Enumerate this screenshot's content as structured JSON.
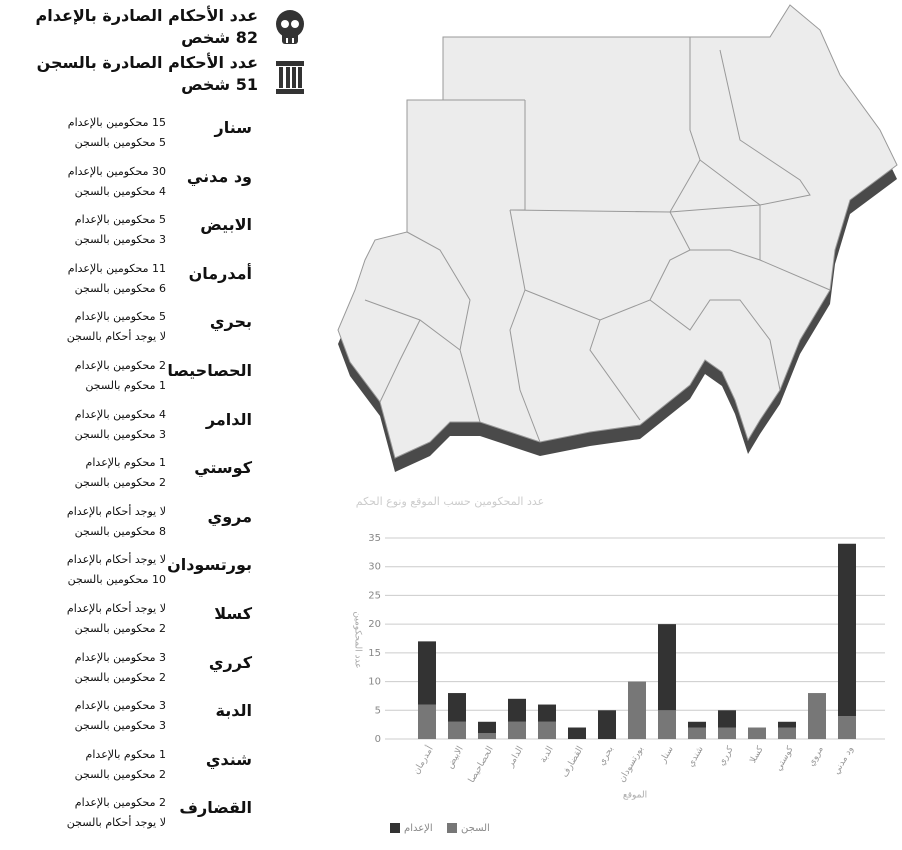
{
  "summary": [
    {
      "label": "عدد الأحكام الصادرة بالإعدام",
      "count": "82 شخص"
    },
    {
      "label": "عدد الأحكام الصادرة بالسجن",
      "count": "51 شخص"
    }
  ],
  "cities": [
    {
      "name": "سنار",
      "lines": [
        "15 محكومين بالإعدام",
        "5 محكومين بالسجن"
      ]
    },
    {
      "name": "ود مدني",
      "lines": [
        "30 محكومين بالإعدام",
        "4 محكومين بالسجن"
      ]
    },
    {
      "name": "الابيض",
      "lines": [
        "5 محكومين بالإعدام",
        "3 محكومين بالسجن"
      ]
    },
    {
      "name": "أمدرمان",
      "lines": [
        "11 محكومين بالإعدام",
        "6 محكومين بالسجن"
      ]
    },
    {
      "name": "بحري",
      "lines": [
        "5 محكومين بالإعدام",
        "لا يوجد أحكام بالسجن"
      ]
    },
    {
      "name": "الحصاحيصا",
      "lines": [
        "2 محكومين بالإعدام",
        "1 محكوم بالسجن"
      ]
    },
    {
      "name": "الدامر",
      "lines": [
        "4 محكومين بالإعدام",
        "3 محكومين بالسجن"
      ]
    },
    {
      "name": "كوستي",
      "lines": [
        "1 محكوم بالإعدام",
        "2 محكومين بالسجن"
      ]
    },
    {
      "name": "مروي",
      "lines": [
        "لا يوجد أحكام بالإعدام",
        "8 محكومين بالسجن"
      ]
    },
    {
      "name": "بورتسودان",
      "lines": [
        "لا يوجد أحكام بالإعدام",
        "10 محكومين بالسجن"
      ]
    },
    {
      "name": "كسلا",
      "lines": [
        "لا يوجد أحكام بالإعدام",
        "2 محكومين بالسجن"
      ]
    },
    {
      "name": "كرري",
      "lines": [
        "3 محكومين بالإعدام",
        "2 محكومين بالسجن"
      ]
    },
    {
      "name": "الدبة",
      "lines": [
        "3 محكومين بالإعدام",
        "3 محكومين بالسجن"
      ]
    },
    {
      "name": "شندي",
      "lines": [
        "1 محكوم بالإعدام",
        "2 محكومين بالسجن"
      ]
    },
    {
      "name": "القضارف",
      "lines": [
        "2 محكومين بالإعدام",
        "لا يوجد أحكام بالسجن"
      ]
    }
  ],
  "chart_data": {
    "type": "stacked_bar",
    "title": "عدد المحكومين حسب الموقع ونوع الحكم",
    "x_label": "الموقع",
    "y_label": "عدد المحكومين",
    "categories": [
      "أمدرمان",
      "الابيض",
      "الحصاحيصا",
      "الدامر",
      "الدبة",
      "القضارف",
      "بحري",
      "بورتسودان",
      "سنار",
      "شندي",
      "كرري",
      "كسلا",
      "كوستي",
      "مروي",
      "ود مدني"
    ],
    "series": [
      {
        "name": "السجن",
        "color": "#777777",
        "values": [
          6,
          3,
          1,
          3,
          3,
          0,
          0,
          10,
          5,
          2,
          2,
          2,
          2,
          8,
          4
        ]
      },
      {
        "name": "الإعدام",
        "color": "#333333",
        "values": [
          11,
          5,
          2,
          4,
          3,
          2,
          5,
          0,
          15,
          1,
          3,
          0,
          1,
          0,
          30
        ]
      }
    ],
    "ylim": [
      0,
      35
    ],
    "yticks": [
      0,
      5,
      10,
      15,
      20,
      25,
      30,
      35
    ],
    "grid": true
  }
}
